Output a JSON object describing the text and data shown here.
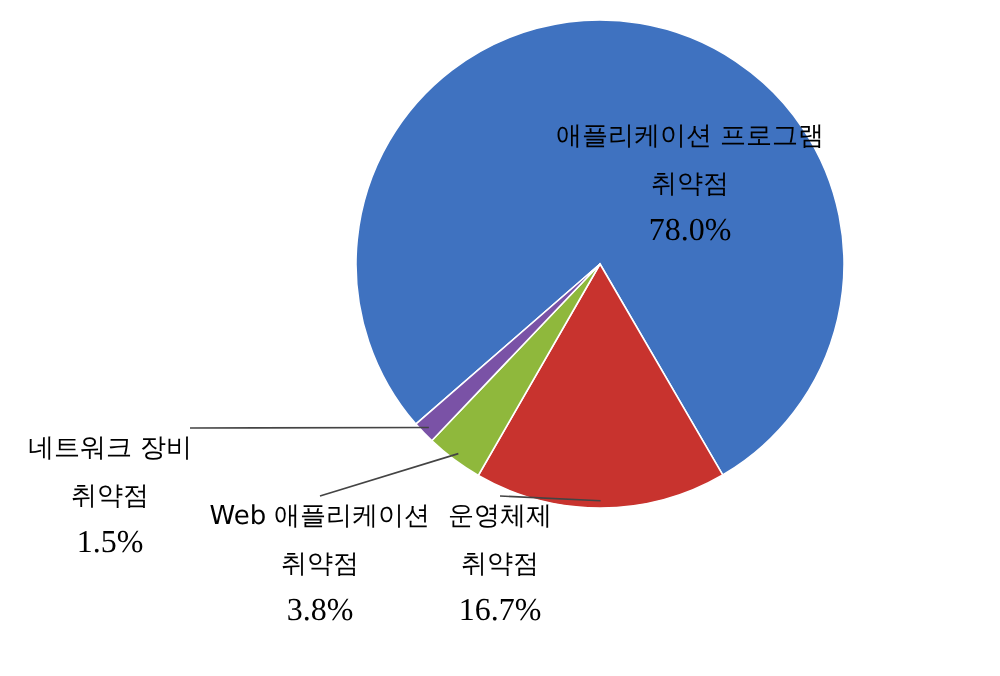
{
  "chart_data": {
    "type": "pie",
    "categories": [
      "애플리케이션 프로그램 취약점",
      "운영체제 취약점",
      "Web 애플리케이션 취약점",
      "네트워크 장비 취약점"
    ],
    "values": [
      78.0,
      16.7,
      3.8,
      1.5
    ],
    "value_labels": [
      "78.0%",
      "16.7%",
      "3.8%",
      "1.5%"
    ],
    "colors": [
      "#3f72c0",
      "#c8332e",
      "#8fb83c",
      "#7a52a6"
    ]
  }
}
